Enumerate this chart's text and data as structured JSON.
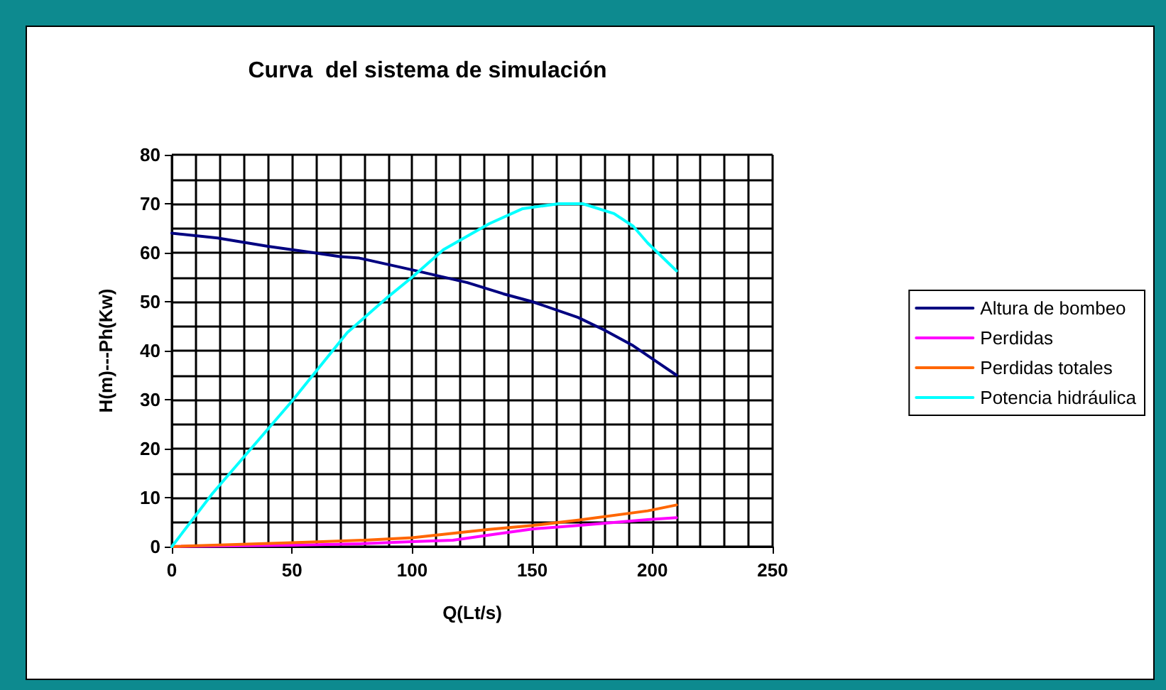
{
  "chart_data": {
    "type": "line",
    "title": "Curva  del sistema de simulación",
    "xlabel": "Q(Lt/s)",
    "ylabel": "H(m)---Ph(Kw)",
    "xlim": [
      0,
      250
    ],
    "xticks": [
      0,
      50,
      100,
      150,
      200,
      250
    ],
    "ylim": [
      0,
      80
    ],
    "yticks": [
      0,
      10,
      20,
      30,
      40,
      50,
      60,
      70,
      80
    ],
    "grid": true,
    "legend": "right",
    "marker": "none",
    "line_style": "solid",
    "series": [
      {
        "name": "Altura de bombeo",
        "color": "#000080",
        "x": [
          0,
          19,
          40,
          59,
          70,
          78,
          100,
          123,
          138,
          150,
          169,
          180,
          192,
          210
        ],
        "values": [
          64,
          63,
          61.3,
          60,
          59.2,
          58.9,
          56.5,
          53.9,
          51.6,
          50,
          46.8,
          44.2,
          41,
          35
        ]
      },
      {
        "name": "Perdidas",
        "color": "#ff00ff",
        "x": [
          0,
          50,
          80,
          100,
          117,
          134,
          150,
          169,
          198,
          210
        ],
        "values": [
          0,
          0.3,
          0.6,
          1,
          1.3,
          2.5,
          3.6,
          4.3,
          5.5,
          5.9
        ]
      },
      {
        "name": "Perdidas totales",
        "color": "#ff6600",
        "x": [
          0,
          50,
          80,
          100,
          132,
          150,
          169,
          198,
          210
        ],
        "values": [
          0,
          0.8,
          1.3,
          1.8,
          3.5,
          4.3,
          5.4,
          7.3,
          8.5
        ]
      },
      {
        "name": "Potencia hidráulica",
        "color": "#00ffff",
        "x": [
          0,
          17,
          50,
          73,
          90,
          100,
          113,
          132,
          146,
          161,
          171,
          184,
          192,
          198,
          210
        ],
        "values": [
          0,
          10.9,
          29.7,
          43.7,
          51,
          55,
          60.6,
          65.9,
          69,
          70,
          70,
          68,
          65.4,
          62,
          56.3
        ]
      }
    ]
  }
}
